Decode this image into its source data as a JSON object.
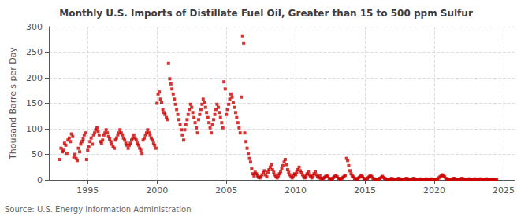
{
  "chart_data": {
    "type": "scatter",
    "title": "Monthly U.S. Imports of Distillate Fuel Oil, Greater than 15 to 500 ppm Sulfur",
    "ylabel": "Thousand Barrels per Day",
    "annotation": "Source: U.S. Energy Information Administration",
    "color": "#cc0000",
    "marker": "square",
    "grid": true,
    "xlim": [
      1992.2,
      2025.8
    ],
    "ylim": [
      0,
      300
    ],
    "xticks": [
      1995,
      2000,
      2005,
      2010,
      2015,
      2020,
      2025
    ],
    "yticks": [
      0,
      50,
      100,
      150,
      200,
      250,
      300
    ],
    "x": [
      1993.0,
      1993.08,
      1993.17,
      1993.25,
      1993.33,
      1993.42,
      1993.5,
      1993.58,
      1993.67,
      1993.75,
      1993.83,
      1993.92,
      1994.0,
      1994.08,
      1994.17,
      1994.25,
      1994.33,
      1994.42,
      1994.5,
      1994.58,
      1994.67,
      1994.75,
      1994.83,
      1994.92,
      1995.0,
      1995.08,
      1995.17,
      1995.25,
      1995.33,
      1995.42,
      1995.5,
      1995.58,
      1995.67,
      1995.75,
      1995.83,
      1995.92,
      1996.0,
      1996.08,
      1996.17,
      1996.25,
      1996.33,
      1996.42,
      1996.5,
      1996.58,
      1996.67,
      1996.75,
      1996.83,
      1996.92,
      1997.0,
      1997.08,
      1997.17,
      1997.25,
      1997.33,
      1997.42,
      1997.5,
      1997.58,
      1997.67,
      1997.75,
      1997.83,
      1997.92,
      1998.0,
      1998.08,
      1998.17,
      1998.25,
      1998.33,
      1998.42,
      1998.5,
      1998.58,
      1998.67,
      1998.75,
      1998.83,
      1998.92,
      1999.0,
      1999.08,
      1999.17,
      1999.25,
      1999.33,
      1999.42,
      1999.5,
      1999.58,
      1999.67,
      1999.75,
      1999.83,
      1999.92,
      2000.0,
      2000.08,
      2000.17,
      2000.25,
      2000.33,
      2000.42,
      2000.5,
      2000.58,
      2000.67,
      2000.75,
      2000.83,
      2000.92,
      2001.0,
      2001.08,
      2001.17,
      2001.25,
      2001.33,
      2001.42,
      2001.5,
      2001.58,
      2001.67,
      2001.75,
      2001.83,
      2001.92,
      2002.0,
      2002.08,
      2002.17,
      2002.25,
      2002.33,
      2002.42,
      2002.5,
      2002.58,
      2002.67,
      2002.75,
      2002.83,
      2002.92,
      2003.0,
      2003.08,
      2003.17,
      2003.25,
      2003.33,
      2003.42,
      2003.5,
      2003.58,
      2003.67,
      2003.75,
      2003.83,
      2003.92,
      2004.0,
      2004.08,
      2004.17,
      2004.25,
      2004.33,
      2004.42,
      2004.5,
      2004.58,
      2004.67,
      2004.75,
      2004.83,
      2004.92,
      2005.0,
      2005.08,
      2005.17,
      2005.25,
      2005.33,
      2005.42,
      2005.5,
      2005.58,
      2005.67,
      2005.75,
      2005.83,
      2005.92,
      2006.0,
      2006.08,
      2006.17,
      2006.25,
      2006.33,
      2006.42,
      2006.5,
      2006.58,
      2006.67,
      2006.75,
      2006.83,
      2006.92,
      2007.0,
      2007.08,
      2007.17,
      2007.25,
      2007.33,
      2007.42,
      2007.5,
      2007.58,
      2007.67,
      2007.75,
      2007.83,
      2007.92,
      2008.0,
      2008.08,
      2008.17,
      2008.25,
      2008.33,
      2008.42,
      2008.5,
      2008.58,
      2008.67,
      2008.75,
      2008.83,
      2008.92,
      2009.0,
      2009.08,
      2009.17,
      2009.25,
      2009.33,
      2009.42,
      2009.5,
      2009.58,
      2009.67,
      2009.75,
      2009.83,
      2009.92,
      2010.0,
      2010.08,
      2010.17,
      2010.25,
      2010.33,
      2010.42,
      2010.5,
      2010.58,
      2010.67,
      2010.75,
      2010.83,
      2010.92,
      2011.0,
      2011.08,
      2011.17,
      2011.25,
      2011.33,
      2011.42,
      2011.5,
      2011.58,
      2011.67,
      2011.75,
      2011.83,
      2011.92,
      2012.0,
      2012.08,
      2012.17,
      2012.25,
      2012.33,
      2012.42,
      2012.5,
      2012.58,
      2012.67,
      2012.75,
      2012.83,
      2012.92,
      2013.0,
      2013.08,
      2013.17,
      2013.25,
      2013.33,
      2013.42,
      2013.5,
      2013.58,
      2013.67,
      2013.75,
      2013.83,
      2013.92,
      2014.0,
      2014.08,
      2014.17,
      2014.25,
      2014.33,
      2014.42,
      2014.5,
      2014.58,
      2014.67,
      2014.75,
      2014.83,
      2014.92,
      2015.0,
      2015.08,
      2015.17,
      2015.25,
      2015.33,
      2015.42,
      2015.5,
      2015.58,
      2015.67,
      2015.75,
      2015.83,
      2015.92,
      2016.0,
      2016.08,
      2016.17,
      2016.25,
      2016.33,
      2016.42,
      2016.5,
      2016.58,
      2016.67,
      2016.75,
      2016.83,
      2016.92,
      2017.0,
      2017.08,
      2017.17,
      2017.25,
      2017.33,
      2017.42,
      2017.5,
      2017.58,
      2017.67,
      2017.75,
      2017.83,
      2017.92,
      2018.0,
      2018.08,
      2018.17,
      2018.25,
      2018.33,
      2018.42,
      2018.5,
      2018.58,
      2018.67,
      2018.75,
      2018.83,
      2018.92,
      2019.0,
      2019.08,
      2019.17,
      2019.25,
      2019.33,
      2019.42,
      2019.5,
      2019.58,
      2019.67,
      2019.75,
      2019.83,
      2019.92,
      2020.0,
      2020.08,
      2020.17,
      2020.25,
      2020.33,
      2020.42,
      2020.5,
      2020.58,
      2020.67,
      2020.75,
      2020.83,
      2020.92,
      2021.0,
      2021.08,
      2021.17,
      2021.25,
      2021.33,
      2021.42,
      2021.5,
      2021.58,
      2021.67,
      2021.75,
      2021.83,
      2021.92,
      2022.0,
      2022.08,
      2022.17,
      2022.25,
      2022.33,
      2022.42,
      2022.5,
      2022.58,
      2022.67,
      2022.75,
      2022.83,
      2022.92,
      2023.0,
      2023.08,
      2023.17,
      2023.25,
      2023.33,
      2023.42,
      2023.5,
      2023.58,
      2023.67,
      2023.75,
      2023.83,
      2023.92,
      2024.0,
      2024.08,
      2024.17,
      2024.25,
      2024.33,
      2024.42,
      2024.5
    ],
    "values": [
      40,
      62,
      55,
      58,
      72,
      68,
      52,
      78,
      82,
      75,
      90,
      85,
      45,
      50,
      42,
      38,
      62,
      55,
      70,
      75,
      80,
      88,
      92,
      40,
      58,
      65,
      75,
      82,
      70,
      88,
      92,
      98,
      102,
      95,
      88,
      75,
      72,
      78,
      88,
      92,
      98,
      92,
      85,
      80,
      75,
      70,
      65,
      62,
      78,
      82,
      88,
      92,
      98,
      92,
      88,
      82,
      78,
      72,
      68,
      62,
      68,
      72,
      78,
      82,
      88,
      82,
      78,
      72,
      68,
      62,
      58,
      52,
      78,
      82,
      88,
      92,
      98,
      92,
      88,
      82,
      78,
      72,
      68,
      62,
      150,
      168,
      172,
      158,
      152,
      138,
      132,
      128,
      122,
      118,
      228,
      198,
      188,
      178,
      168,
      158,
      148,
      138,
      128,
      118,
      108,
      98,
      88,
      78,
      98,
      108,
      118,
      128,
      138,
      148,
      142,
      132,
      122,
      112,
      102,
      92,
      118,
      128,
      138,
      148,
      158,
      152,
      142,
      132,
      122,
      112,
      102,
      92,
      108,
      118,
      128,
      138,
      148,
      142,
      132,
      122,
      112,
      102,
      192,
      178,
      128,
      138,
      148,
      158,
      168,
      162,
      152,
      142,
      132,
      122,
      112,
      102,
      92,
      162,
      282,
      268,
      92,
      75,
      62,
      52,
      42,
      35,
      22,
      12,
      8,
      15,
      12,
      8,
      5,
      4,
      6,
      10,
      14,
      18,
      10,
      6,
      15,
      20,
      25,
      30,
      20,
      15,
      10,
      6,
      4,
      8,
      12,
      16,
      22,
      28,
      35,
      40,
      30,
      20,
      15,
      10,
      6,
      4,
      8,
      12,
      10,
      15,
      20,
      25,
      18,
      14,
      10,
      6,
      4,
      8,
      12,
      16,
      10,
      6,
      4,
      8,
      12,
      16,
      10,
      6,
      4,
      8,
      3,
      2,
      3,
      5,
      7,
      9,
      6,
      3,
      2,
      1,
      3,
      5,
      7,
      9,
      6,
      3,
      2,
      1,
      3,
      5,
      7,
      9,
      42,
      38,
      28,
      18,
      12,
      8,
      6,
      3,
      2,
      1,
      3,
      5,
      7,
      9,
      6,
      3,
      2,
      1,
      3,
      5,
      7,
      9,
      6,
      3,
      2,
      1,
      0,
      0,
      1,
      3,
      5,
      7,
      5,
      3,
      2,
      1,
      0,
      0,
      1,
      3,
      2,
      1,
      0,
      0,
      1,
      3,
      2,
      1,
      0,
      0,
      1,
      2,
      3,
      2,
      1,
      0,
      0,
      1,
      3,
      2,
      1,
      0,
      0,
      1,
      2,
      1,
      0,
      0,
      1,
      2,
      1,
      0,
      0,
      1,
      2,
      1,
      0,
      0,
      1,
      2,
      4,
      6,
      8,
      10,
      8,
      6,
      3,
      2,
      1,
      0,
      0,
      1,
      2,
      3,
      2,
      1,
      0,
      0,
      1,
      2,
      3,
      2,
      1,
      0,
      0,
      1,
      2,
      1,
      0,
      0,
      1,
      2,
      1,
      0,
      0,
      1,
      2,
      1,
      0,
      0,
      1,
      2,
      1,
      0,
      0,
      1,
      0,
      0,
      1,
      0,
      0
    ]
  }
}
